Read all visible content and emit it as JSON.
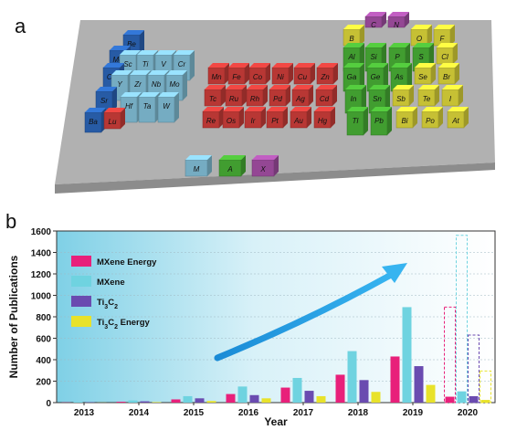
{
  "panels": {
    "a": "a",
    "b": "b"
  },
  "periodic_table": {
    "elements": [
      {
        "s": "Be",
        "g": "blue"
      },
      {
        "s": "Mg",
        "g": "blue"
      },
      {
        "s": "Sc",
        "g": "lightblue"
      },
      {
        "s": "Ti",
        "g": "lightblue"
      },
      {
        "s": "V",
        "g": "lightblue"
      },
      {
        "s": "Cr",
        "g": "lightblue"
      },
      {
        "s": "Ca",
        "g": "blue"
      },
      {
        "s": "Y",
        "g": "lightblue"
      },
      {
        "s": "Zr",
        "g": "lightblue"
      },
      {
        "s": "Nb",
        "g": "lightblue"
      },
      {
        "s": "Mo",
        "g": "lightblue"
      },
      {
        "s": "Sr",
        "g": "blue"
      },
      {
        "s": "Hf",
        "g": "lightblue"
      },
      {
        "s": "Ta",
        "g": "lightblue"
      },
      {
        "s": "W",
        "g": "lightblue"
      },
      {
        "s": "Ba",
        "g": "blue"
      },
      {
        "s": "Lu",
        "g": "red"
      },
      {
        "s": "Mn",
        "g": "red"
      },
      {
        "s": "Fe",
        "g": "red"
      },
      {
        "s": "Co",
        "g": "red"
      },
      {
        "s": "Ni",
        "g": "red"
      },
      {
        "s": "Cu",
        "g": "red"
      },
      {
        "s": "Zn",
        "g": "red"
      },
      {
        "s": "Tc",
        "g": "red"
      },
      {
        "s": "Ru",
        "g": "red"
      },
      {
        "s": "Rh",
        "g": "red"
      },
      {
        "s": "Pd",
        "g": "red"
      },
      {
        "s": "Ag",
        "g": "red"
      },
      {
        "s": "Cd",
        "g": "red"
      },
      {
        "s": "Re",
        "g": "red"
      },
      {
        "s": "Os",
        "g": "red"
      },
      {
        "s": "Ir",
        "g": "red"
      },
      {
        "s": "Pt",
        "g": "red"
      },
      {
        "s": "Au",
        "g": "red"
      },
      {
        "s": "Hg",
        "g": "red"
      },
      {
        "s": "B",
        "g": "yellow"
      },
      {
        "s": "C",
        "g": "magenta"
      },
      {
        "s": "N",
        "g": "magenta"
      },
      {
        "s": "O",
        "g": "yellow"
      },
      {
        "s": "F",
        "g": "yellow"
      },
      {
        "s": "Al",
        "g": "green"
      },
      {
        "s": "Si",
        "g": "green"
      },
      {
        "s": "P",
        "g": "green"
      },
      {
        "s": "S",
        "g": "green"
      },
      {
        "s": "Cl",
        "g": "yellow"
      },
      {
        "s": "Ga",
        "g": "green"
      },
      {
        "s": "Ge",
        "g": "green"
      },
      {
        "s": "As",
        "g": "green"
      },
      {
        "s": "Se",
        "g": "yellow"
      },
      {
        "s": "Br",
        "g": "yellow"
      },
      {
        "s": "In",
        "g": "green"
      },
      {
        "s": "Sn",
        "g": "green"
      },
      {
        "s": "Sb",
        "g": "yellow"
      },
      {
        "s": "Te",
        "g": "yellow"
      },
      {
        "s": "I",
        "g": "yellow"
      },
      {
        "s": "Tl",
        "g": "green"
      },
      {
        "s": "Pb",
        "g": "green"
      },
      {
        "s": "Bi",
        "g": "yellow"
      },
      {
        "s": "Po",
        "g": "yellow"
      },
      {
        "s": "At",
        "g": "yellow"
      }
    ],
    "legend_tiles": [
      {
        "s": "M",
        "g": "lightblue"
      },
      {
        "s": "A",
        "g": "green"
      },
      {
        "s": "X",
        "g": "magenta"
      }
    ],
    "colors": {
      "blue": "#2f6fc9",
      "lightblue": "#8fd2ec",
      "red": "#e0433f",
      "green": "#4fbf3a",
      "yellow": "#f2ea3f",
      "magenta": "#b457b5",
      "base": "#a8a8a8"
    }
  },
  "chart_data": {
    "type": "bar",
    "title": "",
    "xlabel": "Year",
    "ylabel": "Number of Publications",
    "categories": [
      "2013",
      "2014",
      "2015",
      "2016",
      "2017",
      "2018",
      "2019",
      "2020"
    ],
    "ylim": [
      0,
      1600
    ],
    "yticks": [
      0,
      200,
      400,
      600,
      800,
      1000,
      1200,
      1400,
      1600
    ],
    "grid": true,
    "legend_position": "top-left",
    "series": [
      {
        "name": "MXene Energy",
        "color": "#e8207a",
        "values": [
          2,
          8,
          30,
          80,
          140,
          260,
          430,
          55
        ]
      },
      {
        "name": "MXene",
        "color": "#6fd3e0",
        "values": [
          6,
          20,
          60,
          150,
          230,
          480,
          890,
          105
        ]
      },
      {
        "name": "Ti3C2",
        "color": "#6a4bb0",
        "values": [
          3,
          12,
          40,
          70,
          110,
          210,
          340,
          60
        ]
      },
      {
        "name": "Ti3C2 Energy",
        "color": "#e8e22a",
        "values": [
          1,
          5,
          15,
          40,
          60,
          100,
          165,
          25
        ]
      }
    ],
    "projected_2020": {
      "MXene Energy": 890,
      "MXene": 1560,
      "Ti3C2": 630,
      "Ti3C2 Energy": 295
    }
  }
}
